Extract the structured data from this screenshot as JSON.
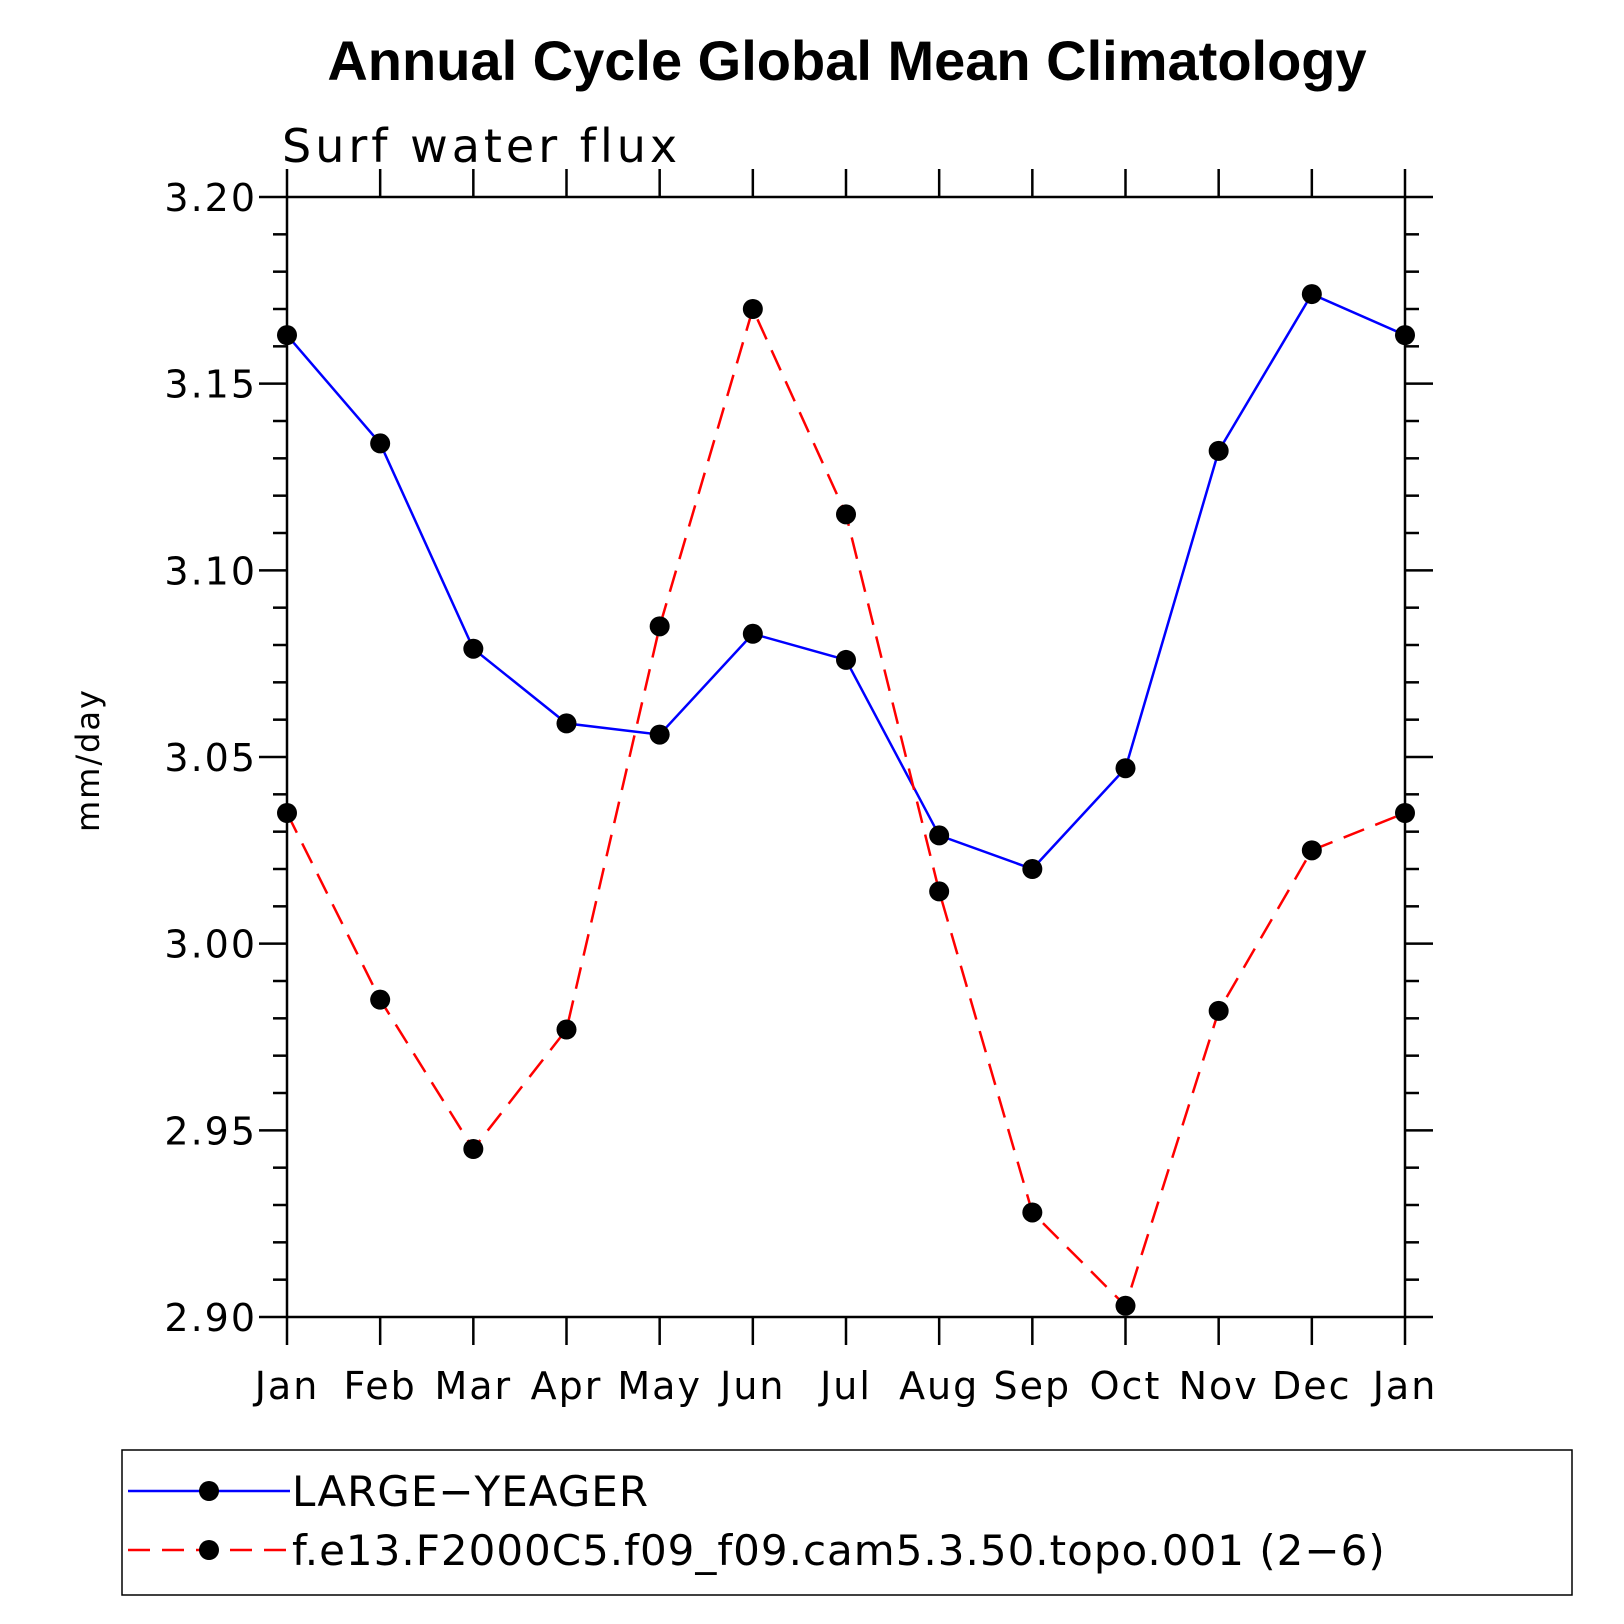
{
  "chart_data": {
    "type": "line",
    "title": "Annual Cycle Global Mean Climatology",
    "subtitle": "Surf water flux",
    "xlabel": "",
    "ylabel": "mm/day",
    "categories": [
      "Jan",
      "Feb",
      "Mar",
      "Apr",
      "May",
      "Jun",
      "Jul",
      "Aug",
      "Sep",
      "Oct",
      "Nov",
      "Dec",
      "Jan"
    ],
    "ylim": [
      2.9,
      3.2
    ],
    "yticks": [
      "2.90",
      "2.95",
      "3.00",
      "3.05",
      "3.10",
      "3.15",
      "3.20"
    ],
    "grid": false,
    "legend_position": "bottom",
    "series": [
      {
        "name": "LARGE−YEAGER",
        "color": "#0000ff",
        "dash": "solid",
        "values": [
          3.163,
          3.134,
          3.079,
          3.059,
          3.056,
          3.083,
          3.076,
          3.029,
          3.02,
          3.047,
          3.132,
          3.174,
          3.163
        ]
      },
      {
        "name": "f.e13.F2000C5.f09_f09.cam5.3.50.topo.001 (2−6)",
        "color": "#ff0000",
        "dash": "dashed",
        "values": [
          3.035,
          2.985,
          2.945,
          2.977,
          3.085,
          3.17,
          3.115,
          3.014,
          2.928,
          2.903,
          2.982,
          3.025,
          3.035
        ]
      }
    ]
  }
}
